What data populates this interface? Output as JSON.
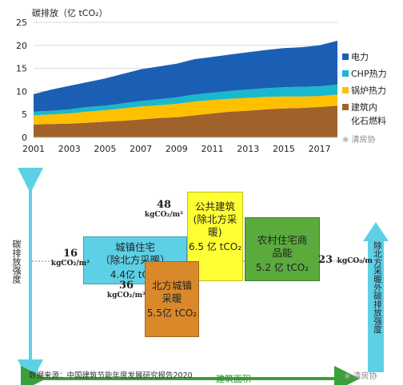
{
  "chart_data": [
    {
      "type": "area",
      "title": "",
      "ylabel": "碳排放（亿 tCO₂）",
      "ylim": [
        0,
        25
      ],
      "yticks": [
        "0",
        "5",
        "10",
        "15",
        "20",
        "25"
      ],
      "xticks": [
        "2001",
        "2003",
        "2005",
        "2007",
        "2009",
        "2011",
        "2013",
        "2015",
        "2017"
      ],
      "x": [
        2001,
        2002,
        2003,
        2004,
        2005,
        2006,
        2007,
        2008,
        2009,
        2010,
        2011,
        2012,
        2013,
        2014,
        2015,
        2016,
        2017,
        2018
      ],
      "stacked": true,
      "legend_position": "right",
      "series": [
        {
          "name": "建筑内化石燃料",
          "label_lines": [
            "建筑内",
            "化石燃料"
          ],
          "color": "#a0622a",
          "values": [
            2.8,
            2.9,
            3.0,
            3.2,
            3.4,
            3.6,
            3.9,
            4.2,
            4.4,
            4.8,
            5.2,
            5.6,
            5.8,
            6.1,
            6.3,
            6.4,
            6.6,
            6.9
          ]
        },
        {
          "name": "锅炉热力",
          "label_lines": [
            "锅炉热力"
          ],
          "color": "#ffc000",
          "values": [
            2.0,
            2.1,
            2.2,
            2.4,
            2.5,
            2.7,
            2.8,
            2.8,
            2.9,
            3.0,
            2.9,
            2.8,
            2.8,
            2.7,
            2.6,
            2.5,
            2.4,
            2.4
          ]
        },
        {
          "name": "CHP热力",
          "label_lines": [
            "CHP热力"
          ],
          "color": "#1ab8cc",
          "values": [
            0.8,
            0.8,
            0.9,
            1.0,
            1.0,
            1.1,
            1.2,
            1.3,
            1.4,
            1.5,
            1.6,
            1.7,
            1.8,
            1.9,
            2.0,
            2.1,
            2.1,
            2.2
          ]
        },
        {
          "name": "电力",
          "label_lines": [
            "电力"
          ],
          "color": "#1a5fb4",
          "values": [
            3.8,
            4.6,
            5.1,
            5.4,
            5.9,
            6.4,
            6.9,
            7.1,
            7.3,
            7.7,
            7.8,
            7.9,
            8.1,
            8.3,
            8.5,
            8.6,
            8.9,
            9.5
          ]
        }
      ]
    },
    {
      "type": "bar",
      "subtype": "variable-width (Marimekko)",
      "xlabel": "建筑面积",
      "ylabel": "碳排放强度",
      "ylabel_right": "除北方采暖外碳排放强度",
      "unit": "kgCO₂/m²",
      "series": [
        {
          "name": "城镇住宅（除北方采暖）",
          "intensity": 16,
          "total": "4.4亿 tCO₂",
          "color": "#5ed0e6"
        },
        {
          "name": "公共建筑（除北方采暖）",
          "intensity": 48,
          "total": "6.5 亿 tCO₂",
          "color": "#ffff33"
        },
        {
          "name": "农村住宅商品能",
          "intensity": 23,
          "total": "5.2 亿 tCO₂",
          "color": "#5aaa3c"
        },
        {
          "name": "北方城镇采暖",
          "intensity": 36,
          "total": "5.5亿 tCO₂",
          "color": "#d9892a"
        }
      ]
    }
  ],
  "chart1": {
    "ylabel": "碳排放（亿 tCO₂）",
    "legend": [
      {
        "name": "电力",
        "color": "#1a5fb4"
      },
      {
        "name": "CHP热力",
        "color": "#1ab8cc"
      },
      {
        "name": "锅炉热力",
        "color": "#ffc000"
      },
      {
        "name": "建筑内",
        "line2": "化石燃料",
        "color": "#a0622a"
      }
    ],
    "watermark": "清房协"
  },
  "chart2": {
    "y_axis_label": "碳排放强度",
    "right_axis_label": "除北方采暖外碳排放强度",
    "x_axis_label": "建筑面积",
    "source": "数据来源：中国建筑节能年度发展研究报告2020",
    "watermark": "清房协",
    "blocks": {
      "urban_res": {
        "title1": "城镇住宅",
        "title2": "（除北方采暖）",
        "total": "4.4亿 tCO₂"
      },
      "public": {
        "title1": "公共建筑",
        "title2": "(除北方采暖)",
        "total": "6.5 亿 tCO₂"
      },
      "rural": {
        "title1": "农村住宅商",
        "title2": "品能",
        "total": "5.2 亿 tCO₂"
      },
      "heating": {
        "title1": "北方城镇",
        "title2": "采暖",
        "total": "5.5亿 tCO₂"
      }
    },
    "intensities": {
      "urban_res": {
        "value": "16",
        "unit": "kgCO₂/m²"
      },
      "public": {
        "value": "48",
        "unit": "kgCO₂/m²"
      },
      "rural": {
        "value": "23",
        "unit": "kgCO₂/m"
      },
      "heating": {
        "value": "36",
        "unit": "kgCO₂/m²"
      }
    }
  }
}
